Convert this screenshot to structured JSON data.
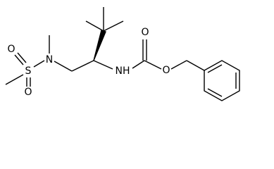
{
  "atoms": [
    {
      "label": "O"
    },
    {
      "label": "S"
    },
    {
      "label": "O"
    },
    {
      "label": "N"
    },
    {
      "label": "NH"
    },
    {
      "label": "O"
    },
    {
      "label": "O"
    }
  ]
}
